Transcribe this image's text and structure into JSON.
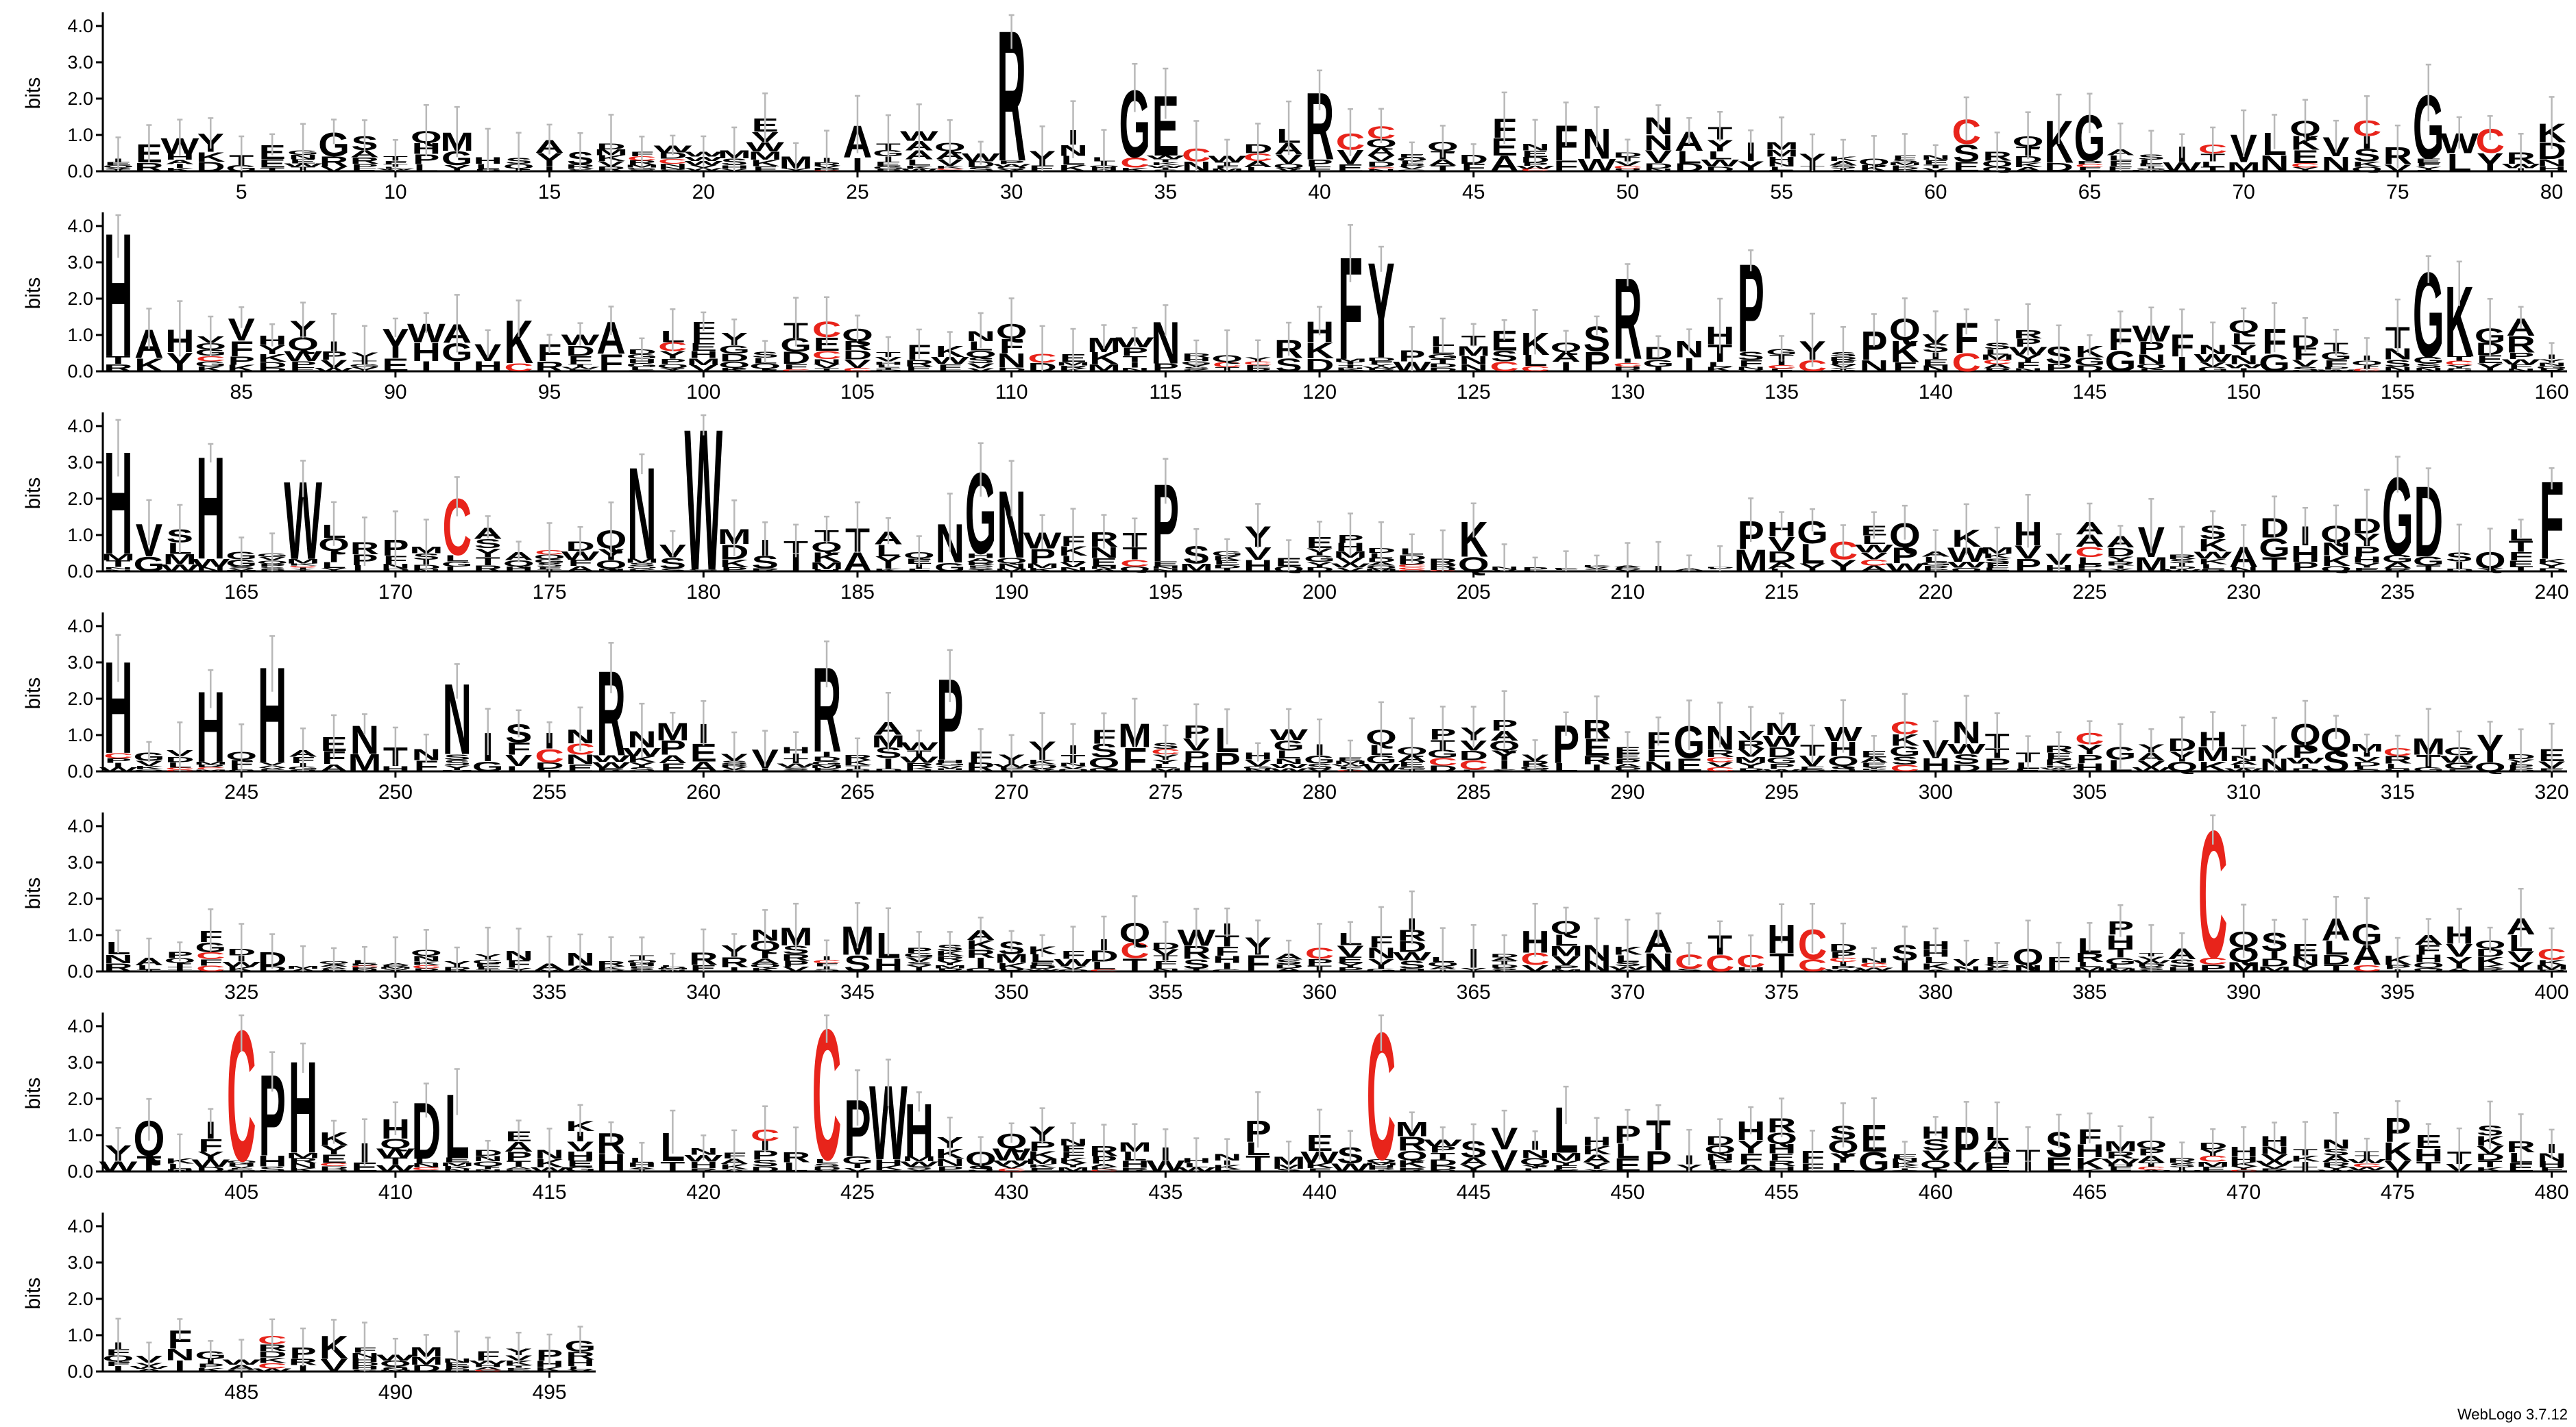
{
  "chart_data": {
    "type": "sequence-logo",
    "ylabel": "bits",
    "ylim": [
      0,
      4.3
    ],
    "y_ticks": [
      "0.0",
      "1.0",
      "2.0",
      "3.0",
      "4.0"
    ],
    "positions_per_row": 80,
    "total_positions": 496,
    "x_tick_step": 5,
    "version_label": "WebLogo 3.7.12",
    "colors": {
      "default": "#000000",
      "cysteine": "#e8241b",
      "error_bar": "#b8b8b8"
    },
    "prominent_letters": [
      {
        "pos": 30,
        "letter": "R",
        "height": 3.7
      },
      {
        "pos": 34,
        "letter": "G",
        "height": 1.9
      },
      {
        "pos": 35,
        "letter": "E",
        "height": 1.7
      },
      {
        "pos": 40,
        "letter": "R",
        "height": 1.9
      },
      {
        "pos": 42,
        "letter": "C",
        "height": 0.35,
        "color": "cysteine"
      },
      {
        "pos": 65,
        "letter": "G",
        "height": 1.3
      },
      {
        "pos": 76,
        "letter": "G",
        "height": 1.8
      },
      {
        "pos": 81,
        "letter": "H",
        "height": 3.5
      },
      {
        "pos": 121,
        "letter": "F",
        "height": 2.9
      },
      {
        "pos": 122,
        "letter": "Y",
        "height": 2.7
      },
      {
        "pos": 130,
        "letter": "R",
        "height": 2.3
      },
      {
        "pos": 134,
        "letter": "P",
        "height": 2.5
      },
      {
        "pos": 156,
        "letter": "G",
        "height": 2.4
      },
      {
        "pos": 157,
        "letter": "K",
        "height": 2.0
      },
      {
        "pos": 161,
        "letter": "H",
        "height": 2.9
      },
      {
        "pos": 164,
        "letter": "H",
        "height": 2.9
      },
      {
        "pos": 167,
        "letter": "W",
        "height": 2.2
      },
      {
        "pos": 172,
        "letter": "C",
        "height": 1.6,
        "color": "cysteine"
      },
      {
        "pos": 178,
        "letter": "N",
        "height": 2.6
      },
      {
        "pos": 180,
        "letter": "W",
        "height": 4.0
      },
      {
        "pos": 189,
        "letter": "G",
        "height": 2.3
      },
      {
        "pos": 190,
        "letter": "N",
        "height": 1.9
      },
      {
        "pos": 195,
        "letter": "P",
        "height": 2.2
      },
      {
        "pos": 235,
        "letter": "G",
        "height": 2.2
      },
      {
        "pos": 236,
        "letter": "D",
        "height": 2.0
      },
      {
        "pos": 240,
        "letter": "F",
        "height": 2.2
      },
      {
        "pos": 241,
        "letter": "H",
        "height": 2.6
      },
      {
        "pos": 244,
        "letter": "H",
        "height": 2.0
      },
      {
        "pos": 246,
        "letter": "H",
        "height": 2.7
      },
      {
        "pos": 252,
        "letter": "N",
        "height": 2.0
      },
      {
        "pos": 257,
        "letter": "R",
        "height": 2.4
      },
      {
        "pos": 264,
        "letter": "R",
        "height": 2.4
      },
      {
        "pos": 268,
        "letter": "P",
        "height": 2.3
      },
      {
        "pos": 389,
        "letter": "C",
        "height": 3.6,
        "color": "cysteine"
      },
      {
        "pos": 405,
        "letter": "C",
        "height": 3.7,
        "color": "cysteine"
      },
      {
        "pos": 406,
        "letter": "P",
        "height": 2.3
      },
      {
        "pos": 407,
        "letter": "H",
        "height": 2.6
      },
      {
        "pos": 411,
        "letter": "D",
        "height": 1.6
      },
      {
        "pos": 412,
        "letter": "L",
        "height": 1.8
      },
      {
        "pos": 424,
        "letter": "C",
        "height": 3.7,
        "color": "cysteine"
      },
      {
        "pos": 425,
        "letter": "P",
        "height": 1.6
      },
      {
        "pos": 426,
        "letter": "W",
        "height": 2.1
      },
      {
        "pos": 427,
        "letter": "H",
        "height": 1.5
      },
      {
        "pos": 442,
        "letter": "C",
        "height": 3.6,
        "color": "cysteine"
      },
      {
        "pos": 448,
        "letter": "L",
        "height": 1.3
      }
    ]
  }
}
